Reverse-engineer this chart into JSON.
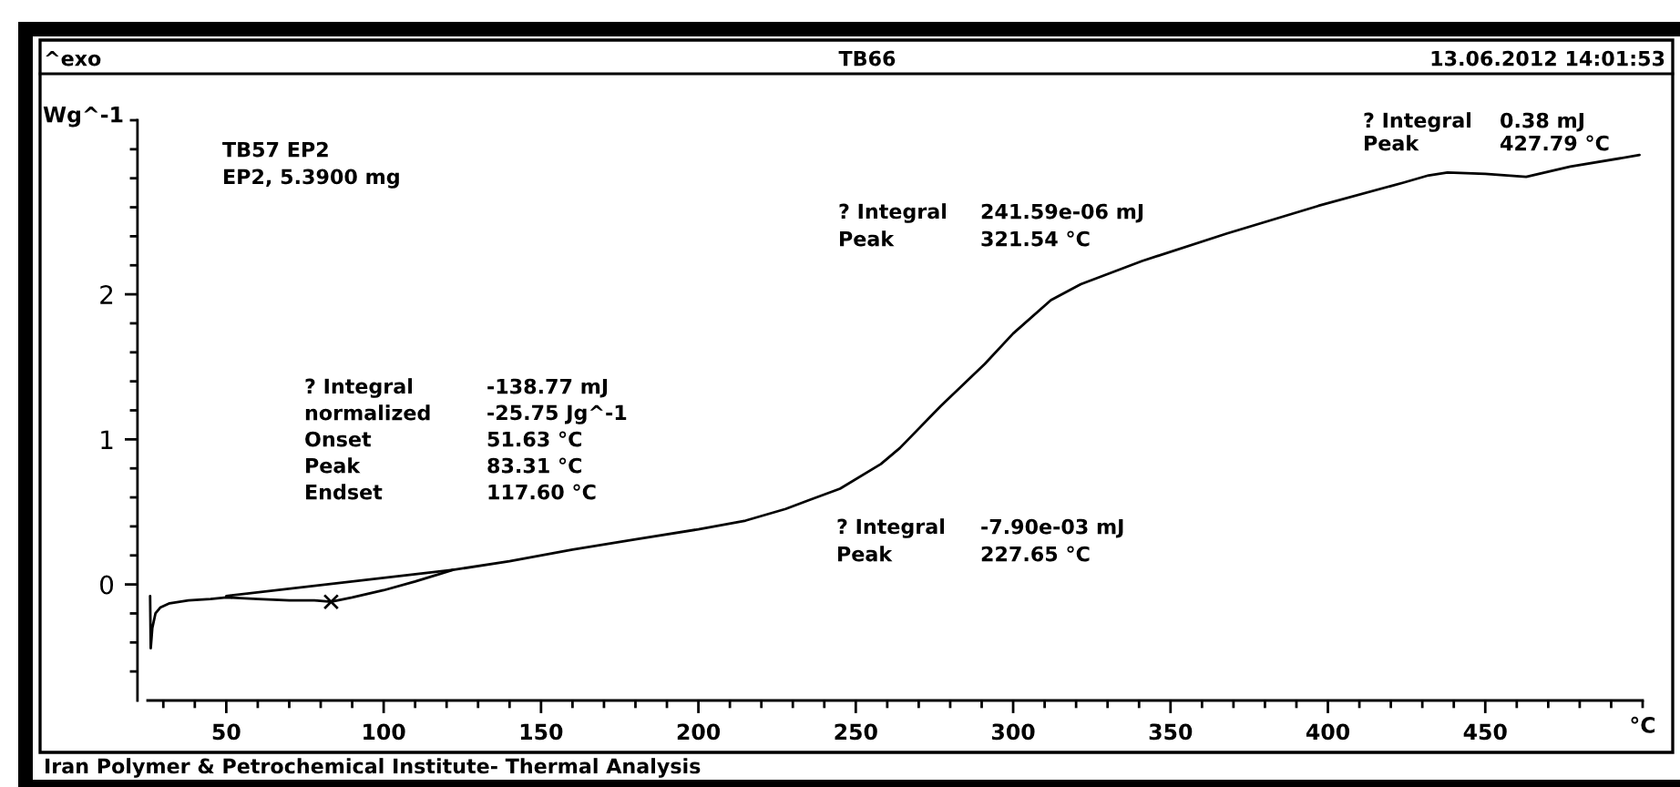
{
  "chart_data": {
    "type": "line",
    "title": "TB66",
    "xlabel": "°C",
    "ylabel": "Wg^-1",
    "annotations": [
      "^exo",
      "13.06.2012 14:01:53",
      "TB57 EP2\nEP2, 5.3900 mg",
      "? Integral\t-138.77 mJ\nnormalized\t-25.75 Jg^-1\nOnset\t51.63 °C\nPeak\t83.31 °C\nEndset\t117.60 °C",
      "? Integral\t241.59e-06 mJ\nPeak\t321.54 °C",
      "? Integral\t-7.90e-03 mJ\nPeak\t227.65 °C",
      "? Integral\t0.38 mJ\nPeak\t427.79 °C",
      "Iran Polymer & Petrochemical Institute- Thermal Analysis"
    ],
    "xlim": [
      25,
      500
    ],
    "xticks": [
      {
        "value": 30,
        "label": null
      },
      {
        "value": 40,
        "label": null
      },
      50,
      {
        "value": 60,
        "label": null
      },
      {
        "value": 70,
        "label": null
      },
      {
        "value": 80,
        "label": null
      },
      {
        "value": 90,
        "label": null
      },
      100,
      {
        "value": 110,
        "label": null
      },
      {
        "value": 120,
        "label": null
      },
      {
        "value": 130,
        "label": null
      },
      {
        "value": 140,
        "label": null
      },
      150,
      {
        "value": 160,
        "label": null
      },
      {
        "value": 170,
        "label": null
      },
      {
        "value": 180,
        "label": null
      },
      {
        "value": 190,
        "label": null
      },
      200,
      {
        "value": 210,
        "label": null
      },
      {
        "value": 220,
        "label": null
      },
      {
        "value": 230,
        "label": null
      },
      {
        "value": 240,
        "label": null
      },
      250,
      {
        "value": 260,
        "label": null
      },
      {
        "value": 270,
        "label": null
      },
      {
        "value": 280,
        "label": null
      },
      {
        "value": 290,
        "label": null
      },
      300,
      {
        "value": 310,
        "label": null
      },
      {
        "value": 320,
        "label": null
      },
      {
        "value": 330,
        "label": null
      },
      {
        "value": 340,
        "label": null
      },
      350,
      {
        "value": 360,
        "label": null
      },
      {
        "value": 370,
        "label": null
      },
      {
        "value": 380,
        "label": null
      },
      {
        "value": 390,
        "label": null
      },
      400,
      {
        "value": 410,
        "label": null
      },
      {
        "value": 420,
        "label": null
      },
      {
        "value": 430,
        "label": null
      },
      {
        "value": 440,
        "label": null
      },
      450,
      {
        "value": 460,
        "label": null
      },
      {
        "value": 470,
        "label": null
      },
      {
        "value": 480,
        "label": null
      },
      {
        "value": 490,
        "label": null
      },
      {
        "value": 500,
        "label": null
      }
    ],
    "ylim": [
      -0.8,
      3.2
    ],
    "yticks": [
      {
        "value": -0.6,
        "label": null
      },
      {
        "value": -0.4,
        "label": null
      },
      {
        "value": -0.2,
        "label": null
      },
      0,
      {
        "value": 0.2,
        "label": null
      },
      {
        "value": 0.4,
        "label": null
      },
      {
        "value": 0.6,
        "label": null
      },
      {
        "value": 0.8,
        "label": null
      },
      1,
      {
        "value": 1.2,
        "label": null
      },
      {
        "value": 1.4,
        "label": null
      },
      {
        "value": 1.6,
        "label": null
      },
      {
        "value": 1.8,
        "label": null
      },
      2,
      {
        "value": 2.2,
        "label": null
      },
      {
        "value": 2.4,
        "label": null
      },
      {
        "value": 2.6,
        "label": null
      },
      {
        "value": 2.8,
        "label": null
      },
      {
        "value": 3.0,
        "label": null
      },
      {
        "value": 3.2,
        "label": null
      }
    ],
    "series": [
      {
        "color": "#000000",
        "x": [
          25.8,
          26.0,
          26.5,
          27.5,
          29,
          32,
          38,
          45,
          50,
          60,
          70,
          78,
          83.3,
          90,
          100,
          110,
          117.6,
          122,
          140,
          160,
          180,
          200,
          215,
          227.7,
          235,
          245,
          258,
          264,
          277,
          291,
          300,
          312,
          321.5,
          341,
          368,
          397,
          424,
          432,
          438,
          450,
          463,
          477,
          499
        ],
        "values": [
          -0.08,
          -0.44,
          -0.3,
          -0.2,
          -0.16,
          -0.13,
          -0.11,
          -0.1,
          -0.09,
          -0.1,
          -0.11,
          -0.11,
          -0.12,
          -0.09,
          -0.04,
          0.02,
          0.07,
          0.1,
          0.16,
          0.24,
          0.31,
          0.38,
          0.44,
          0.52,
          0.58,
          0.66,
          0.83,
          0.94,
          1.23,
          1.52,
          1.73,
          1.96,
          2.07,
          2.23,
          2.42,
          2.61,
          2.77,
          2.82,
          2.84,
          2.83,
          2.81,
          2.88,
          2.96
        ]
      },
      {
        "color": "#000000",
        "x": [
          50,
          122
        ],
        "values": [
          -0.08,
          0.1
        ]
      },
      {
        "type": "scatter",
        "marker": "cross",
        "color": "#000000",
        "x": [
          83.31
        ],
        "values": [
          -0.12
        ]
      }
    ]
  }
}
